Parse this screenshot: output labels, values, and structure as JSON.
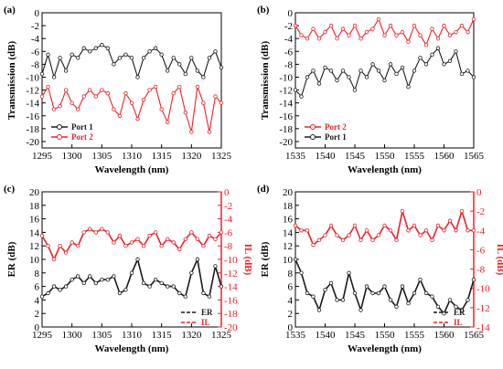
{
  "colors": {
    "black": "#1a1a1a",
    "red": "#e8232a",
    "red_axis": "#e8232a"
  },
  "chart_data": [
    {
      "panel": "(a)",
      "type": "line",
      "xlabel": "Wavelength (nm)",
      "ylabel": "Transmission (dB)",
      "xlim": [
        1295,
        1325
      ],
      "ylim": [
        -21,
        0
      ],
      "xticks": [
        1295,
        1300,
        1305,
        1310,
        1315,
        1320,
        1325
      ],
      "yticks": [
        0,
        -2,
        -4,
        -6,
        -8,
        -10,
        -12,
        -14,
        -16,
        -18,
        -20
      ],
      "legend_position": "bottom-left",
      "series": [
        {
          "name": "Port 1",
          "color": "#1a1a1a",
          "marker": "circle",
          "x": [
            1295,
            1296,
            1297,
            1298,
            1299,
            1300,
            1301,
            1302,
            1303,
            1304,
            1305,
            1306,
            1307,
            1308,
            1309,
            1310,
            1311,
            1312,
            1313,
            1314,
            1315,
            1316,
            1317,
            1318,
            1319,
            1320,
            1321,
            1322,
            1323,
            1324,
            1325
          ],
          "y": [
            -9.5,
            -6.5,
            -10,
            -7,
            -9,
            -6.5,
            -7,
            -5.5,
            -6,
            -5.5,
            -5,
            -5.5,
            -8,
            -7,
            -6.5,
            -7,
            -10,
            -7,
            -6,
            -5.5,
            -6.5,
            -9,
            -7,
            -8,
            -9.5,
            -7,
            -9,
            -10,
            -7,
            -6,
            -8.5
          ]
        },
        {
          "name": "Port 2",
          "color": "#e8232a",
          "marker": "circle",
          "x": [
            1295,
            1296,
            1297,
            1298,
            1299,
            1300,
            1301,
            1302,
            1303,
            1304,
            1305,
            1306,
            1307,
            1308,
            1309,
            1310,
            1311,
            1312,
            1313,
            1314,
            1315,
            1316,
            1317,
            1318,
            1319,
            1320,
            1321,
            1322,
            1323,
            1324,
            1325
          ],
          "y": [
            -13,
            -11.5,
            -15,
            -14.5,
            -12,
            -14,
            -15,
            -13,
            -12,
            -13,
            -12,
            -12.5,
            -15,
            -16,
            -12.5,
            -14,
            -16.5,
            -13.5,
            -12,
            -11.5,
            -15,
            -17,
            -12.5,
            -11.5,
            -15.5,
            -18.5,
            -11.5,
            -14,
            -18.5,
            -13,
            -14
          ]
        }
      ]
    },
    {
      "panel": "(b)",
      "type": "line",
      "xlabel": "Wavelength (nm)",
      "ylabel": "Transmission (dB)",
      "xlim": [
        1535,
        1565
      ],
      "ylim": [
        -21,
        0
      ],
      "xticks": [
        1535,
        1540,
        1545,
        1550,
        1555,
        1560,
        1565
      ],
      "yticks": [
        0,
        -2,
        -4,
        -6,
        -8,
        -10,
        -12,
        -14,
        -16,
        -18,
        -20
      ],
      "legend_position": "bottom-left",
      "series": [
        {
          "name": "Port 2",
          "color": "#e8232a",
          "marker": "circle",
          "x": [
            1535,
            1536,
            1537,
            1538,
            1539,
            1540,
            1541,
            1542,
            1543,
            1544,
            1545,
            1546,
            1547,
            1548,
            1549,
            1550,
            1551,
            1552,
            1553,
            1554,
            1555,
            1556,
            1557,
            1558,
            1559,
            1560,
            1561,
            1562,
            1563,
            1564,
            1565
          ],
          "y": [
            -2,
            -3.5,
            -4,
            -2.5,
            -4,
            -3,
            -2,
            -4,
            -2.5,
            -3.5,
            -2,
            -4,
            -3,
            -2.5,
            -1,
            -3.5,
            -2,
            -3.5,
            -3,
            -4.5,
            -2,
            -3.5,
            -5,
            -2.5,
            -4,
            -2,
            -3.5,
            -3,
            -2,
            -3,
            -1
          ]
        },
        {
          "name": "Port 1",
          "color": "#1a1a1a",
          "marker": "circle",
          "x": [
            1535,
            1536,
            1537,
            1538,
            1539,
            1540,
            1541,
            1542,
            1543,
            1544,
            1545,
            1546,
            1547,
            1548,
            1549,
            1550,
            1551,
            1552,
            1553,
            1554,
            1555,
            1556,
            1557,
            1558,
            1559,
            1560,
            1561,
            1562,
            1563,
            1564,
            1565
          ],
          "y": [
            -12,
            -13,
            -10,
            -9,
            -11,
            -8.5,
            -9,
            -10.5,
            -9,
            -10,
            -12,
            -9,
            -10,
            -8,
            -9,
            -10.5,
            -8,
            -9.5,
            -8.5,
            -11.5,
            -9,
            -7,
            -8,
            -6.5,
            -5.5,
            -8,
            -7.5,
            -6,
            -9.5,
            -9,
            -10
          ]
        }
      ]
    },
    {
      "panel": "(c)",
      "type": "line",
      "xlabel": "Wavelength (nm)",
      "ylabel": "ER (dB)",
      "y2label": "IL (dB)",
      "xlim": [
        1295,
        1325
      ],
      "ylim": [
        0,
        20
      ],
      "y2lim": [
        -20,
        0
      ],
      "xticks": [
        1295,
        1300,
        1305,
        1310,
        1315,
        1320,
        1325
      ],
      "yticks": [
        0,
        2,
        4,
        6,
        8,
        10,
        12,
        14,
        16,
        18,
        20
      ],
      "y2ticks": [
        0,
        -2,
        -4,
        -6,
        -8,
        -10,
        -12,
        -14,
        -16,
        -18,
        -20
      ],
      "legend_position": "bottom-right",
      "series": [
        {
          "name": "ER",
          "axis": "left",
          "color": "#1a1a1a",
          "style": "dashed",
          "x": [
            1295,
            1296,
            1297,
            1298,
            1299,
            1300,
            1301,
            1302,
            1303,
            1304,
            1305,
            1306,
            1307,
            1308,
            1309,
            1310,
            1311,
            1312,
            1313,
            1314,
            1315,
            1316,
            1317,
            1318,
            1319,
            1320,
            1321,
            1322,
            1323,
            1324,
            1325
          ],
          "y": [
            4.5,
            5,
            6,
            5.5,
            6,
            7,
            7.5,
            6.5,
            7.5,
            6.5,
            7,
            7,
            7.5,
            5,
            5.5,
            8,
            10,
            6.5,
            6,
            7,
            6.5,
            6,
            6,
            5,
            4.5,
            8,
            10,
            5,
            4.5,
            9,
            6
          ]
        },
        {
          "name": "IL",
          "axis": "right",
          "color": "#e8232a",
          "style": "dashed",
          "x": [
            1295,
            1296,
            1297,
            1298,
            1299,
            1300,
            1301,
            1302,
            1303,
            1304,
            1305,
            1306,
            1307,
            1308,
            1309,
            1310,
            1311,
            1312,
            1313,
            1314,
            1315,
            1316,
            1317,
            1318,
            1319,
            1320,
            1321,
            1322,
            1323,
            1324,
            1325
          ],
          "y": [
            -6.5,
            -8,
            -10,
            -8,
            -9,
            -7.5,
            -8,
            -6,
            -5.5,
            -6,
            -5.5,
            -6,
            -7.5,
            -6.5,
            -8,
            -7.5,
            -7,
            -8,
            -6.5,
            -6,
            -8,
            -7,
            -7.5,
            -8.5,
            -7,
            -6,
            -7,
            -8,
            -6.5,
            -7,
            -6
          ]
        }
      ]
    },
    {
      "panel": "(d)",
      "type": "line",
      "xlabel": "Wavelength (nm)",
      "ylabel": "ER (dB)",
      "y2label": "IL (dB)",
      "xlim": [
        1535,
        1565
      ],
      "ylim": [
        0,
        20
      ],
      "y2lim": [
        -14,
        0
      ],
      "xticks": [
        1535,
        1540,
        1545,
        1550,
        1555,
        1560,
        1565
      ],
      "yticks": [
        0,
        2,
        4,
        6,
        8,
        10,
        12,
        14,
        16,
        18,
        20
      ],
      "y2ticks": [
        0,
        -2,
        -4,
        -6,
        -8,
        -10,
        -12,
        -14
      ],
      "legend_position": "bottom-right",
      "series": [
        {
          "name": "ER",
          "axis": "left",
          "color": "#1a1a1a",
          "style": "dashed",
          "x": [
            1535,
            1536,
            1537,
            1538,
            1539,
            1540,
            1541,
            1542,
            1543,
            1544,
            1545,
            1546,
            1547,
            1548,
            1549,
            1550,
            1551,
            1552,
            1553,
            1554,
            1555,
            1556,
            1557,
            1558,
            1559,
            1560,
            1561,
            1562,
            1563,
            1564,
            1565
          ],
          "y": [
            10,
            8,
            5,
            4.5,
            2.5,
            5.5,
            6.5,
            4,
            4,
            8,
            5,
            2.5,
            6,
            5,
            5,
            6,
            4,
            3,
            6,
            3.5,
            5,
            7,
            5,
            4.5,
            3,
            2,
            4,
            3,
            2.5,
            4,
            7
          ]
        },
        {
          "name": "IL",
          "axis": "right",
          "color": "#e8232a",
          "style": "dashed",
          "x": [
            1535,
            1536,
            1537,
            1538,
            1539,
            1540,
            1541,
            1542,
            1543,
            1544,
            1545,
            1546,
            1547,
            1548,
            1549,
            1550,
            1551,
            1552,
            1553,
            1554,
            1555,
            1556,
            1557,
            1558,
            1559,
            1560,
            1561,
            1562,
            1563,
            1564,
            1565
          ],
          "y": [
            -3.5,
            -4,
            -4,
            -5.5,
            -5,
            -4.5,
            -3.5,
            -4.5,
            -5,
            -4.5,
            -3.5,
            -5,
            -4,
            -5,
            -4.5,
            -3.5,
            -4,
            -5,
            -2,
            -4,
            -3.5,
            -4.5,
            -4,
            -5,
            -3.5,
            -4,
            -3,
            -4,
            -2,
            -4,
            -4
          ]
        }
      ]
    }
  ]
}
